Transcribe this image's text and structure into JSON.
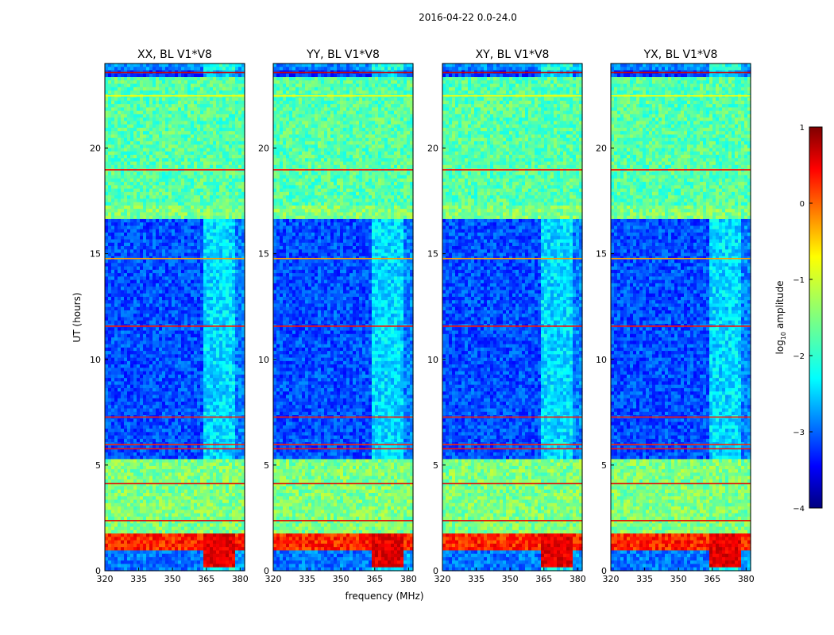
{
  "figure": {
    "suptitle": "2016-04-22 0.0-24.0",
    "xlabel": "frequency (MHz)",
    "ylabel": "UT (hours)"
  },
  "colorbar": {
    "label_main": "log",
    "label_sub": "10",
    "label_rest": " amplitude",
    "ticks": [
      1,
      0,
      -1,
      -2,
      -3,
      -4
    ],
    "tick_labels": [
      "1",
      "0",
      "−1",
      "−2",
      "−3",
      "−4"
    ],
    "vmin": -4,
    "vmax": 1,
    "colormap": "jet"
  },
  "chart_data": [
    {
      "type": "heatmap",
      "title": "XX, BL V1*V8",
      "x_ticks": [
        "320",
        "335",
        "350",
        "365",
        "380"
      ],
      "y_ticks": [
        "0",
        "5",
        "10",
        "15",
        "20"
      ],
      "xlim": [
        320,
        382
      ],
      "ylim": [
        0,
        24
      ],
      "xlabel": "frequency (MHz)",
      "ylabel": "UT (hours)"
    },
    {
      "type": "heatmap",
      "title": "YY, BL V1*V8",
      "x_ticks": [
        "320",
        "335",
        "350",
        "365",
        "380"
      ],
      "y_ticks": [
        "0",
        "5",
        "10",
        "15",
        "20"
      ],
      "xlim": [
        320,
        382
      ],
      "ylim": [
        0,
        24
      ]
    },
    {
      "type": "heatmap",
      "title": "XY, BL V1*V8",
      "x_ticks": [
        "320",
        "335",
        "350",
        "365",
        "380"
      ],
      "y_ticks": [
        "0",
        "5",
        "10",
        "15",
        "20"
      ],
      "xlim": [
        320,
        382
      ],
      "ylim": [
        0,
        24
      ]
    },
    {
      "type": "heatmap",
      "title": "YX, BL V1*V8",
      "x_ticks": [
        "320",
        "335",
        "350",
        "365",
        "380"
      ],
      "y_ticks": [
        "0",
        "5",
        "10",
        "15",
        "20"
      ],
      "xlim": [
        320,
        382
      ],
      "ylim": [
        0,
        24
      ]
    }
  ]
}
